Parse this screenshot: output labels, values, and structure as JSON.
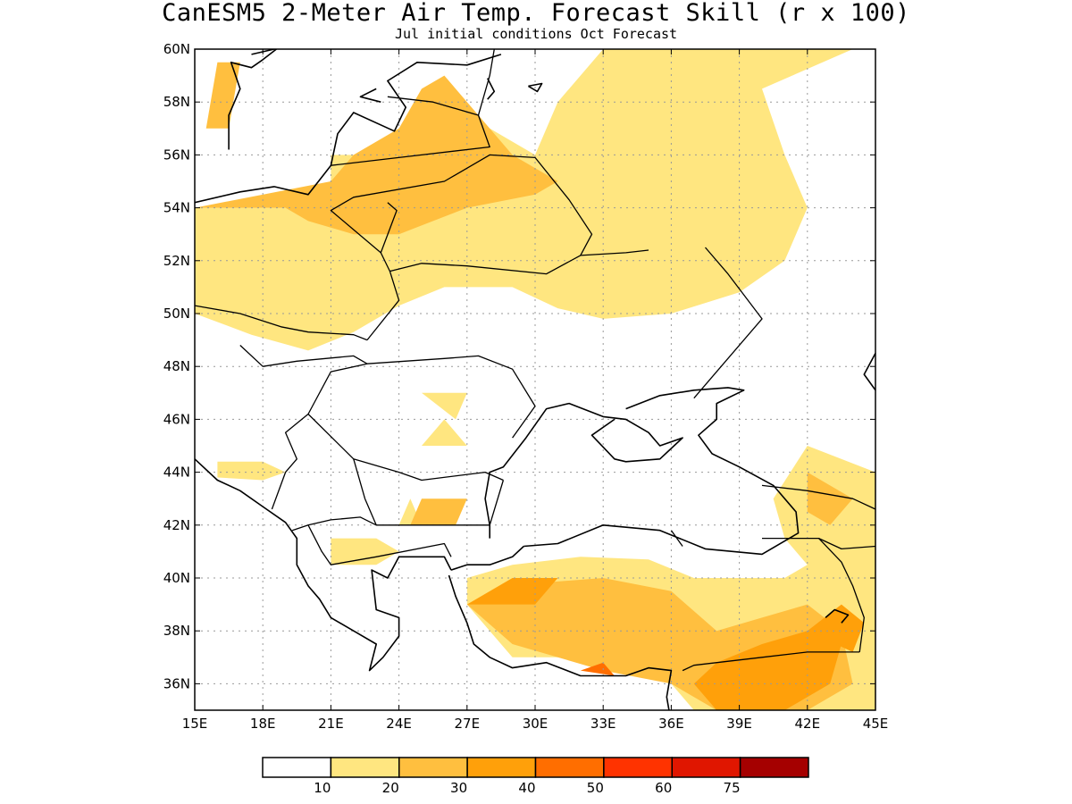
{
  "title": "CanESM5 2-Meter Air Temp. Forecast Skill (r x 100)",
  "subtitle": "Jul initial conditions  Oct Forecast",
  "map": {
    "lon_range": [
      15,
      45
    ],
    "lat_range": [
      35,
      60
    ],
    "lat_ticks": [
      {
        "value": 60,
        "label": "60N"
      },
      {
        "value": 58,
        "label": "58N"
      },
      {
        "value": 56,
        "label": "56N"
      },
      {
        "value": 54,
        "label": "54N"
      },
      {
        "value": 52,
        "label": "52N"
      },
      {
        "value": 50,
        "label": "50N"
      },
      {
        "value": 48,
        "label": "48N"
      },
      {
        "value": 46,
        "label": "46N"
      },
      {
        "value": 44,
        "label": "44N"
      },
      {
        "value": 42,
        "label": "42N"
      },
      {
        "value": 40,
        "label": "40N"
      },
      {
        "value": 38,
        "label": "38N"
      },
      {
        "value": 36,
        "label": "36N"
      }
    ],
    "lon_ticks": [
      {
        "value": 15,
        "label": "15E"
      },
      {
        "value": 18,
        "label": "18E"
      },
      {
        "value": 21,
        "label": "21E"
      },
      {
        "value": 24,
        "label": "24E"
      },
      {
        "value": 27,
        "label": "27E"
      },
      {
        "value": 30,
        "label": "30E"
      },
      {
        "value": 33,
        "label": "33E"
      },
      {
        "value": 36,
        "label": "36E"
      },
      {
        "value": 39,
        "label": "39E"
      },
      {
        "value": 42,
        "label": "42E"
      },
      {
        "value": 45,
        "label": "45E"
      }
    ],
    "grid": true
  },
  "colorbar": {
    "colors": [
      "#ffffff",
      "#ffe680",
      "#ffbf3f",
      "#ffa00a",
      "#ff6e00",
      "#ff3300",
      "#e01600",
      "#a50000"
    ],
    "labels": [
      "10",
      "20",
      "30",
      "40",
      "50",
      "60",
      "75"
    ]
  },
  "skill_regions": [
    {
      "level": 1,
      "points": [
        [
          15,
          54
        ],
        [
          19,
          54
        ],
        [
          21,
          54
        ],
        [
          21,
          56
        ],
        [
          24,
          56
        ],
        [
          26,
          57
        ],
        [
          28,
          57
        ],
        [
          30,
          56
        ],
        [
          31,
          58
        ],
        [
          32,
          59
        ],
        [
          33,
          60
        ],
        [
          44,
          60
        ],
        [
          40,
          58.5
        ],
        [
          41,
          56
        ],
        [
          42,
          54
        ],
        [
          41,
          52
        ],
        [
          39,
          50.8
        ],
        [
          36,
          50
        ],
        [
          33,
          49.8
        ],
        [
          31,
          50.2
        ],
        [
          29,
          51
        ],
        [
          26,
          51
        ],
        [
          24,
          50.3
        ],
        [
          22,
          49.3
        ],
        [
          20,
          48.6
        ],
        [
          17.5,
          49.2
        ],
        [
          15,
          50
        ]
      ]
    },
    {
      "level": 1,
      "points": [
        [
          42,
          45
        ],
        [
          45,
          44
        ],
        [
          45,
          41
        ],
        [
          44,
          40
        ],
        [
          42,
          40.5
        ],
        [
          41,
          41.5
        ],
        [
          40.5,
          43
        ]
      ]
    },
    {
      "level": 1,
      "points": [
        [
          27,
          40
        ],
        [
          29,
          40.5
        ],
        [
          32,
          40.8
        ],
        [
          35,
          40.7
        ],
        [
          37,
          40
        ],
        [
          39,
          40
        ],
        [
          41,
          40
        ],
        [
          43,
          41
        ],
        [
          45,
          41.5
        ],
        [
          45,
          35
        ],
        [
          37,
          35
        ],
        [
          36,
          36
        ],
        [
          34,
          36.5
        ],
        [
          31,
          37
        ],
        [
          29,
          37
        ],
        [
          28,
          38
        ],
        [
          27,
          39
        ]
      ]
    },
    {
      "level": 1,
      "points": [
        [
          21,
          41.5
        ],
        [
          23,
          41.5
        ],
        [
          24,
          41
        ],
        [
          23,
          40.5
        ],
        [
          21,
          40.5
        ]
      ]
    },
    {
      "level": 1,
      "points": [
        [
          16,
          44.4
        ],
        [
          18,
          44.4
        ],
        [
          19,
          44
        ],
        [
          18,
          43.7
        ],
        [
          16,
          43.8
        ]
      ]
    },
    {
      "level": 1,
      "points": [
        [
          25,
          47
        ],
        [
          27,
          47
        ],
        [
          26.5,
          46
        ]
      ]
    },
    {
      "level": 1,
      "points": [
        [
          25,
          45
        ],
        [
          27,
          45
        ],
        [
          26,
          46
        ]
      ]
    },
    {
      "level": 1,
      "points": [
        [
          24,
          42
        ],
        [
          25,
          42
        ],
        [
          24.5,
          43
        ]
      ]
    },
    {
      "level": 2,
      "points": [
        [
          15,
          54
        ],
        [
          19,
          54
        ],
        [
          20,
          53.5
        ],
        [
          22,
          53
        ],
        [
          24,
          53
        ],
        [
          27,
          54
        ],
        [
          30,
          54.5
        ],
        [
          31,
          55
        ],
        [
          29,
          56
        ],
        [
          27,
          58
        ],
        [
          26,
          59
        ],
        [
          25,
          58.5
        ],
        [
          24,
          57
        ],
        [
          22,
          56
        ],
        [
          21,
          55
        ]
      ]
    },
    {
      "level": 2,
      "points": [
        [
          15.5,
          57
        ],
        [
          16,
          59.5
        ],
        [
          17,
          59.5
        ],
        [
          16.5,
          57
        ]
      ]
    },
    {
      "level": 2,
      "points": [
        [
          24.5,
          42
        ],
        [
          26.5,
          42
        ],
        [
          27,
          43
        ],
        [
          25,
          43
        ]
      ]
    },
    {
      "level": 2,
      "points": [
        [
          27,
          39
        ],
        [
          30,
          39.8
        ],
        [
          33,
          40
        ],
        [
          36,
          39.5
        ],
        [
          38,
          38
        ],
        [
          40,
          38.5
        ],
        [
          42,
          39
        ],
        [
          43.5,
          38
        ],
        [
          44,
          36
        ],
        [
          42,
          35
        ],
        [
          38,
          35
        ],
        [
          36,
          36
        ],
        [
          33,
          36.5
        ],
        [
          31,
          37
        ],
        [
          29,
          37.5
        ]
      ]
    },
    {
      "level": 2,
      "points": [
        [
          42,
          44
        ],
        [
          44,
          43
        ],
        [
          43,
          42
        ],
        [
          42,
          42.5
        ]
      ]
    },
    {
      "level": 3,
      "points": [
        [
          27,
          39
        ],
        [
          29,
          40
        ],
        [
          31,
          40
        ],
        [
          30,
          39
        ]
      ]
    },
    {
      "level": 3,
      "points": [
        [
          37,
          36
        ],
        [
          38,
          36.8
        ],
        [
          40,
          37.5
        ],
        [
          42,
          38
        ],
        [
          43.5,
          37.5
        ],
        [
          43,
          36
        ],
        [
          41,
          35
        ],
        [
          38,
          35
        ]
      ]
    },
    {
      "level": 3,
      "points": [
        [
          42,
          38
        ],
        [
          43.5,
          39
        ],
        [
          44.5,
          38.3
        ],
        [
          44,
          37.2
        ]
      ]
    },
    {
      "level": 4,
      "points": [
        [
          32,
          36.5
        ],
        [
          33,
          36.8
        ],
        [
          33.5,
          36.3
        ]
      ]
    }
  ],
  "country_borders": [
    [
      [
        15,
        50.3
      ],
      [
        17,
        50
      ],
      [
        18.8,
        49.5
      ],
      [
        20,
        49.3
      ],
      [
        22,
        49.2
      ],
      [
        22.6,
        49.0
      ]
    ],
    [
      [
        17,
        48.8
      ],
      [
        18,
        48
      ],
      [
        19.5,
        48.2
      ],
      [
        22,
        48.4
      ],
      [
        22.6,
        48.1
      ]
    ],
    [
      [
        22.6,
        49.0
      ],
      [
        24,
        50.5
      ],
      [
        23.6,
        51.6
      ],
      [
        23.2,
        52.3
      ],
      [
        23.9,
        53.9
      ],
      [
        23.5,
        54.2
      ]
    ],
    [
      [
        23.6,
        51.6
      ],
      [
        25,
        51.9
      ],
      [
        27,
        51.8
      ],
      [
        30.5,
        51.5
      ],
      [
        32,
        52.2
      ],
      [
        34,
        52.3
      ],
      [
        35,
        52.4
      ]
    ],
    [
      [
        23.2,
        52.3
      ],
      [
        21,
        53.9
      ],
      [
        22,
        54.4
      ],
      [
        26,
        55
      ],
      [
        28,
        56
      ],
      [
        30,
        55.9
      ],
      [
        31.5,
        54.3
      ],
      [
        32.5,
        53
      ],
      [
        32,
        52.2
      ]
    ],
    [
      [
        21,
        55.6
      ],
      [
        25,
        56
      ],
      [
        28,
        56.3
      ],
      [
        27.5,
        57.5
      ]
    ],
    [
      [
        27.5,
        57.5
      ],
      [
        25.5,
        58
      ],
      [
        23.5,
        58.2
      ]
    ],
    [
      [
        27.5,
        57.5
      ],
      [
        28,
        59
      ],
      [
        28.2,
        60
      ]
    ],
    [
      [
        22.6,
        48.1
      ],
      [
        26,
        48.3
      ],
      [
        27.5,
        48.4
      ],
      [
        29,
        47.9
      ],
      [
        30,
        46.5
      ],
      [
        29,
        45.3
      ]
    ],
    [
      [
        22.6,
        48.1
      ],
      [
        21,
        47.8
      ],
      [
        20,
        46.2
      ],
      [
        22,
        44.5
      ],
      [
        24,
        44
      ],
      [
        25,
        43.7
      ],
      [
        27.8,
        44
      ],
      [
        28.6,
        43.7
      ]
    ],
    [
      [
        20,
        46.2
      ],
      [
        19,
        45.5
      ],
      [
        19.5,
        44.5
      ],
      [
        19,
        44
      ],
      [
        18.4,
        42.6
      ]
    ],
    [
      [
        22,
        44.5
      ],
      [
        22.5,
        43
      ],
      [
        23,
        42
      ],
      [
        22.3,
        42.3
      ],
      [
        21,
        42.2
      ],
      [
        20,
        42
      ],
      [
        19.3,
        41.8
      ]
    ],
    [
      [
        23,
        42
      ],
      [
        26,
        42
      ],
      [
        28,
        42
      ],
      [
        28.6,
        43.7
      ]
    ],
    [
      [
        20,
        42
      ],
      [
        20.6,
        41
      ],
      [
        21,
        40.5
      ],
      [
        23,
        40.8
      ],
      [
        26,
        41.3
      ],
      [
        26.3,
        40.8
      ]
    ],
    [
      [
        36,
        41.8
      ],
      [
        36.5,
        41.2
      ]
    ],
    [
      [
        40,
        41.5
      ],
      [
        42.5,
        41.5
      ],
      [
        43.5,
        41.1
      ],
      [
        45,
        41.2
      ]
    ],
    [
      [
        40,
        43.5
      ],
      [
        42,
        43.3
      ],
      [
        44,
        43
      ],
      [
        45,
        42.6
      ]
    ],
    [
      [
        42.5,
        41.5
      ],
      [
        43.5,
        40.6
      ],
      [
        44,
        39.7
      ],
      [
        44.5,
        38.5
      ],
      [
        44.3,
        37.2
      ]
    ],
    [
      [
        36.5,
        36.5
      ],
      [
        37,
        36.7
      ],
      [
        40,
        37
      ],
      [
        42,
        37.2
      ],
      [
        44.3,
        37.2
      ]
    ],
    [
      [
        37.5,
        52.5
      ],
      [
        38.5,
        51.5
      ],
      [
        40,
        49.8
      ],
      [
        38,
        47.8
      ],
      [
        37,
        46.8
      ]
    ]
  ],
  "coastlines": [
    [
      [
        15,
        54.2
      ],
      [
        17,
        54.6
      ],
      [
        18.5,
        54.8
      ],
      [
        20,
        54.5
      ],
      [
        21,
        55.6
      ],
      [
        21.3,
        56.8
      ],
      [
        22,
        57.6
      ],
      [
        23.8,
        56.9
      ],
      [
        24.3,
        57.8
      ],
      [
        23.5,
        58.8
      ],
      [
        24.8,
        59.5
      ],
      [
        27,
        59.4
      ],
      [
        28.5,
        59.8
      ]
    ],
    [
      [
        16.5,
        56.2
      ],
      [
        16.5,
        57.5
      ],
      [
        17,
        58.5
      ],
      [
        16.6,
        59.5
      ],
      [
        17.5,
        59.3
      ],
      [
        18,
        59.6
      ],
      [
        18.6,
        60
      ]
    ],
    [
      [
        17.5,
        59.8
      ],
      [
        18.5,
        60
      ]
    ],
    [
      [
        23,
        58.5
      ],
      [
        22.3,
        58.2
      ],
      [
        23.2,
        58.0
      ]
    ],
    [
      [
        15,
        44.5
      ],
      [
        16,
        43.7
      ],
      [
        17,
        43.3
      ],
      [
        18,
        42.7
      ],
      [
        19,
        42.1
      ],
      [
        19.5,
        41.5
      ],
      [
        19.5,
        40.5
      ],
      [
        20,
        39.7
      ],
      [
        20.5,
        39.2
      ],
      [
        21,
        38.5
      ],
      [
        22,
        38
      ],
      [
        23,
        37.5
      ],
      [
        22.7,
        36.5
      ],
      [
        23.3,
        37
      ],
      [
        24,
        37.8
      ],
      [
        24,
        38.5
      ],
      [
        23,
        38.8
      ],
      [
        22.8,
        40.3
      ],
      [
        23.5,
        40
      ],
      [
        24,
        40.8
      ],
      [
        26,
        40.8
      ],
      [
        26.3,
        40.3
      ]
    ],
    [
      [
        26.3,
        40.3
      ],
      [
        27,
        40.5
      ],
      [
        28,
        40.5
      ],
      [
        29,
        40.8
      ],
      [
        29.5,
        41.2
      ]
    ],
    [
      [
        28,
        41.5
      ],
      [
        28,
        42
      ],
      [
        27.8,
        43
      ],
      [
        28,
        44
      ],
      [
        28.6,
        44.2
      ],
      [
        29.6,
        45.3
      ],
      [
        30.5,
        46.4
      ],
      [
        31.5,
        46.6
      ],
      [
        33,
        46.1
      ],
      [
        34,
        46
      ],
      [
        35,
        45.5
      ],
      [
        35.5,
        45
      ],
      [
        36.5,
        45.3
      ],
      [
        35.5,
        44.5
      ],
      [
        34,
        44.4
      ],
      [
        33.5,
        44.5
      ],
      [
        32.5,
        45.4
      ],
      [
        33.5,
        46
      ]
    ],
    [
      [
        34,
        46.4
      ],
      [
        35.5,
        46.9
      ],
      [
        37,
        47.1
      ],
      [
        38.5,
        47.2
      ],
      [
        39.2,
        47.1
      ],
      [
        38,
        46.6
      ],
      [
        38,
        46
      ],
      [
        37.2,
        45.4
      ],
      [
        37.8,
        44.7
      ],
      [
        39,
        44.2
      ],
      [
        40.5,
        43.5
      ],
      [
        41.5,
        42.5
      ],
      [
        41.6,
        41.7
      ],
      [
        40,
        40.9
      ],
      [
        37.5,
        41.1
      ],
      [
        35.5,
        41.8
      ],
      [
        33,
        42
      ],
      [
        31,
        41.3
      ],
      [
        29.5,
        41.2
      ]
    ],
    [
      [
        26.2,
        40.1
      ],
      [
        26.5,
        39.3
      ],
      [
        27,
        38.3
      ],
      [
        27.3,
        37.5
      ],
      [
        28,
        37
      ],
      [
        29,
        36.6
      ],
      [
        30.5,
        36.8
      ],
      [
        32,
        36.3
      ],
      [
        34,
        36.3
      ],
      [
        35,
        36.6
      ],
      [
        36,
        36.5
      ],
      [
        35.8,
        35.5
      ],
      [
        35.9,
        35
      ]
    ],
    [
      [
        43.5,
        38.3
      ],
      [
        43.8,
        38.6
      ],
      [
        43.2,
        38.8
      ],
      [
        42.8,
        38.5
      ]
    ],
    [
      [
        45,
        48.5
      ],
      [
        44.5,
        47.7
      ],
      [
        45,
        47.1
      ]
    ],
    [
      [
        27.9,
        58.9
      ],
      [
        28.2,
        58.4
      ],
      [
        27.9,
        58.1
      ]
    ],
    [
      [
        29.7,
        58.6
      ],
      [
        30.3,
        58.7
      ],
      [
        30.1,
        58.4
      ],
      [
        29.7,
        58.6
      ]
    ]
  ]
}
